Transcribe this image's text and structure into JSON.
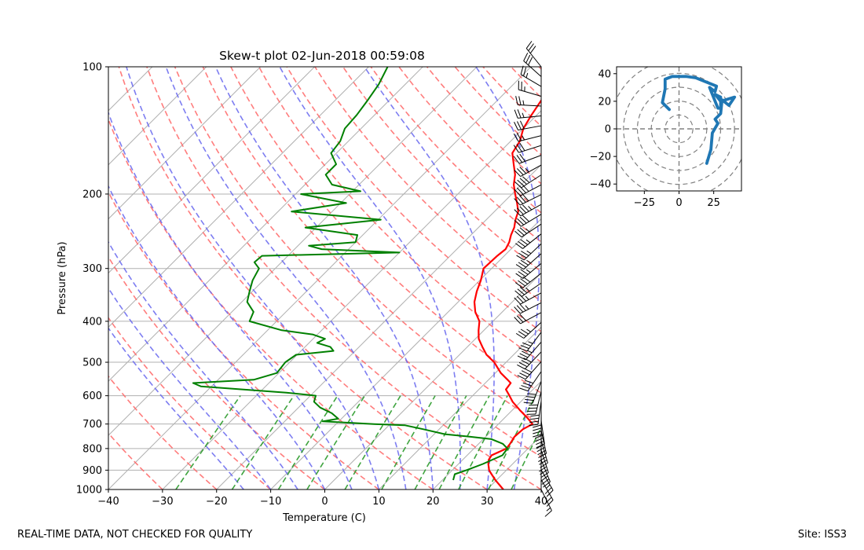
{
  "footer": {
    "disclaimer": "REAL-TIME DATA, NOT CHECKED FOR QUALITY",
    "site": "Site: ISS3"
  },
  "chart_data": [
    {
      "type": "line",
      "title": "Skew-t plot 02-Jun-2018 00:59:08",
      "xlabel": "Temperature (C)",
      "ylabel": "Pressure (hPa)",
      "xlim": [
        -40,
        40
      ],
      "ylim": [
        1000,
        100
      ],
      "y_scale": "log",
      "grid": true,
      "x_ticks": [
        -40,
        -30,
        -20,
        -10,
        0,
        10,
        20,
        30,
        40
      ],
      "y_ticks": [
        100,
        200,
        300,
        400,
        500,
        600,
        700,
        800,
        900,
        1000
      ],
      "colors": {
        "temperature": "#ff0000",
        "dewpoint": "#008000",
        "dry_adiabat": "#ff6666",
        "moist_adiabat": "#6666ee",
        "mixing_ratio": "#2a9a2a",
        "isotherm": "#b0b0b0"
      },
      "series": [
        {
          "pressure": [
            1000,
            950,
            920,
            900,
            870,
            850,
            830,
            800,
            780,
            750,
            720,
            700,
            680,
            650,
            620,
            600,
            580,
            560,
            550,
            530,
            500,
            480,
            460,
            440,
            420,
            400,
            380,
            360,
            340,
            320,
            300,
            290,
            280,
            270,
            260,
            250,
            240,
            230,
            220,
            210,
            200,
            190,
            180,
            170,
            160,
            150,
            140,
            130,
            120,
            110,
            100
          ],
          "values": [
            33,
            29.8,
            28,
            26.8,
            25.5,
            24.8,
            24.5,
            26,
            25.8,
            25.3,
            25.5,
            26.3,
            24.5,
            21.5,
            18.5,
            16.8,
            15,
            14.7,
            13.5,
            11,
            7.8,
            5,
            2.8,
            0.6,
            -1,
            -2.5,
            -5,
            -7,
            -8.5,
            -9.8,
            -11.5,
            -11.4,
            -11.3,
            -11,
            -11.6,
            -12.6,
            -13.4,
            -14.6,
            -15.6,
            -17.4,
            -19.4,
            -21.4,
            -23,
            -25.2,
            -27.5,
            -28.3,
            -30,
            -31,
            -31.9,
            -33.5,
            -35.3
          ]
        },
        {
          "pressure": [
            950,
            920,
            900,
            870,
            850,
            830,
            800,
            780,
            760,
            750,
            740,
            720,
            705,
            700,
            690,
            680,
            660,
            640,
            620,
            600,
            590,
            570,
            560,
            550,
            530,
            500,
            480,
            470,
            460,
            450,
            440,
            430,
            420,
            400,
            380,
            360,
            340,
            320,
            300,
            290,
            280,
            275,
            270,
            265,
            260,
            250,
            240,
            230,
            220,
            210,
            200,
            197,
            190,
            180,
            170,
            160,
            150,
            140,
            130,
            120,
            110,
            100
          ],
          "values": [
            22,
            21.2,
            22.6,
            24.5,
            25.5,
            26.5,
            26.2,
            24.5,
            21.5,
            17,
            12,
            7,
            3,
            -3,
            -13,
            -10.6,
            -12.8,
            -16,
            -18.2,
            -19,
            -25,
            -42,
            -44,
            -33.4,
            -30.4,
            -30.8,
            -30.2,
            -24,
            -25.3,
            -28.5,
            -27.8,
            -30.8,
            -37.4,
            -45,
            -46,
            -49,
            -50.5,
            -52,
            -53,
            -55,
            -54.8,
            -30,
            -45,
            -48,
            -40,
            -41,
            -52,
            -39.5,
            -57.5,
            -49,
            -59,
            -48.5,
            -55,
            -58,
            -58,
            -61,
            -61.5,
            -63,
            -63.3,
            -64,
            -64.9,
            -66.5
          ]
        }
      ],
      "wind_barbs": true
    },
    {
      "type": "line",
      "xlim": [
        -45,
        45
      ],
      "ylim": [
        -45,
        45
      ],
      "x_ticks": [
        -25,
        0,
        25
      ],
      "y_ticks": [
        -40,
        -20,
        0,
        20,
        40
      ],
      "grid": "polar",
      "rings": [
        10,
        20,
        30,
        40,
        50
      ],
      "series": [
        {
          "color": "#1f77b4",
          "x": [
            20,
            23,
            24,
            28,
            26,
            30,
            31,
            36,
            40,
            30,
            26,
            28,
            30,
            30,
            28,
            22,
            26,
            27,
            12,
            5,
            -5,
            -10,
            -10,
            -12,
            -7
          ],
          "y": [
            -25,
            -15,
            -3,
            4,
            7,
            11,
            21,
            17,
            23,
            20,
            25,
            24,
            23,
            15,
            15,
            30,
            27,
            31,
            37,
            38,
            38,
            36,
            29,
            19,
            14
          ]
        }
      ]
    }
  ]
}
